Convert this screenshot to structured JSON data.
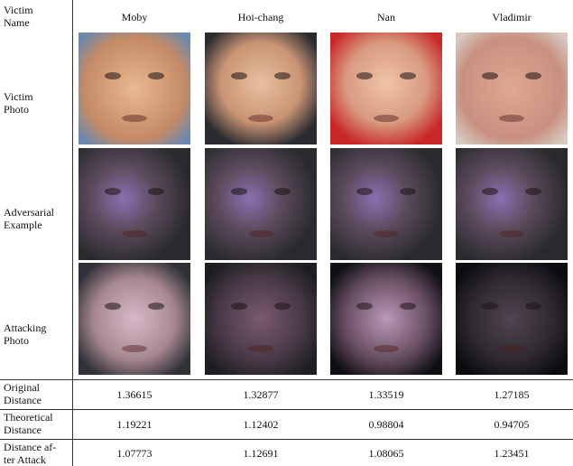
{
  "table": {
    "row_labels": [
      [
        "Victim",
        "Name"
      ],
      [
        "Victim",
        "Photo"
      ],
      [
        "Adversarial",
        "Example"
      ],
      [
        "Attacking",
        "Photo"
      ],
      [
        "Original",
        "Distance"
      ],
      [
        "Theoretical",
        "Distance"
      ],
      [
        "Distance af-",
        "ter Attack"
      ]
    ],
    "names": [
      "Moby",
      "Hoi-chang",
      "Nan",
      "Vladimir"
    ],
    "rows": [
      [
        "1.36615",
        "1.32877",
        "1.33519",
        "1.27185"
      ],
      [
        "1.19221",
        "1.12402",
        "0.98804",
        "0.94705"
      ],
      [
        "1.07773",
        "1.12691",
        "1.08065",
        "1.23451"
      ]
    ]
  }
}
